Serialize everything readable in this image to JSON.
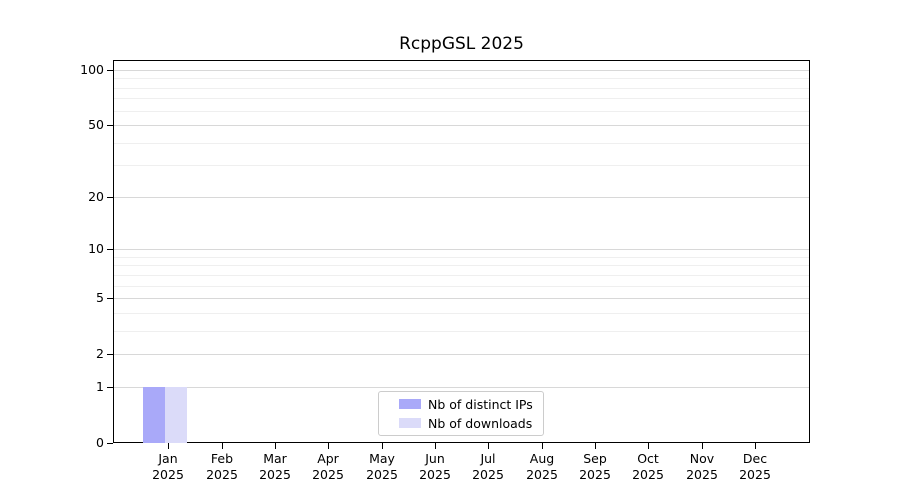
{
  "figure": {
    "background": "#ffffff"
  },
  "chart_data": {
    "type": "bar",
    "title": "RcppGSL 2025",
    "categories": [
      {
        "month": "Jan",
        "year": "2025"
      },
      {
        "month": "Feb",
        "year": "2025"
      },
      {
        "month": "Mar",
        "year": "2025"
      },
      {
        "month": "Apr",
        "year": "2025"
      },
      {
        "month": "May",
        "year": "2025"
      },
      {
        "month": "Jun",
        "year": "2025"
      },
      {
        "month": "Jul",
        "year": "2025"
      },
      {
        "month": "Aug",
        "year": "2025"
      },
      {
        "month": "Sep",
        "year": "2025"
      },
      {
        "month": "Oct",
        "year": "2025"
      },
      {
        "month": "Nov",
        "year": "2025"
      },
      {
        "month": "Dec",
        "year": "2025"
      }
    ],
    "series": [
      {
        "name": "Nb of distinct IPs",
        "color": "#a9a9f9",
        "values": [
          1,
          0,
          0,
          0,
          0,
          0,
          0,
          0,
          0,
          0,
          0,
          0
        ]
      },
      {
        "name": "Nb of downloads",
        "color": "#dbdbf9",
        "values": [
          1,
          0,
          0,
          0,
          0,
          0,
          0,
          0,
          0,
          0,
          0,
          0
        ]
      }
    ],
    "xlabel": "",
    "ylabel": "",
    "y_scale": "log1p",
    "y_ticks": [
      0,
      1,
      2,
      5,
      10,
      20,
      50,
      100
    ],
    "y_minor_gridlines": [
      3,
      4,
      6,
      7,
      8,
      9,
      30,
      40,
      60,
      70,
      80,
      90
    ],
    "ylim": [
      0,
      115
    ],
    "grid": "horizontal",
    "legend_position": "inside-bottom-center"
  }
}
